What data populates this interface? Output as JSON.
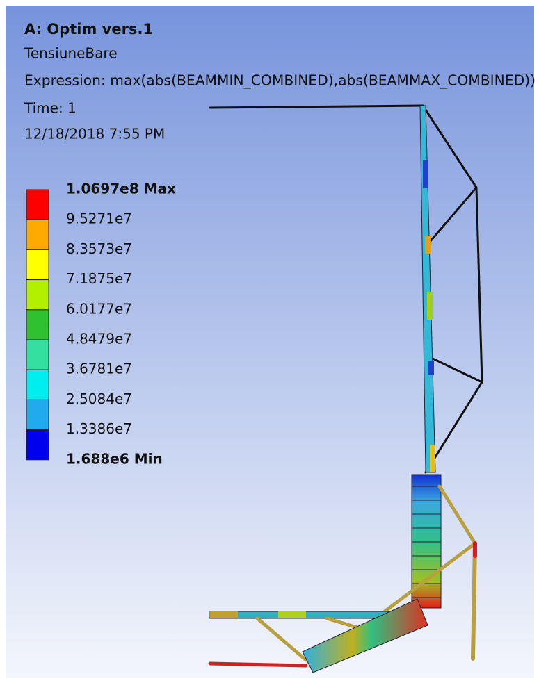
{
  "header": {
    "title": "A: Optim vers.1",
    "lines": [
      "TensiuneBare",
      "Expression: max(abs(BEAMMIN_COMBINED),abs(BEAMMAX_COMBINED))",
      "Time: 1",
      "12/18/2018 7:55 PM"
    ]
  },
  "legend": {
    "items": [
      {
        "label": "1.0697e8 Max",
        "color": "#ff0000"
      },
      {
        "label": "9.5271e7",
        "color": "#ffaa00"
      },
      {
        "label": "8.3573e7",
        "color": "#ffff00"
      },
      {
        "label": "7.1875e7",
        "color": "#b3f000"
      },
      {
        "label": "6.0177e7",
        "color": "#2fc02f"
      },
      {
        "label": "4.8479e7",
        "color": "#33e0a0"
      },
      {
        "label": "3.6781e7",
        "color": "#00eeee"
      },
      {
        "label": "2.5084e7",
        "color": "#22aaee"
      },
      {
        "label": "1.3386e7",
        "color": "#0000ee"
      },
      {
        "label": "1.688e6 Min",
        "color": null
      }
    ]
  }
}
